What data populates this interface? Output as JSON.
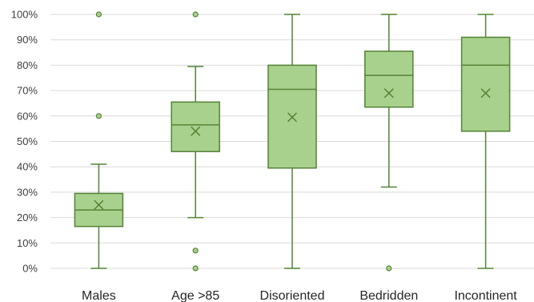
{
  "chart_data": {
    "type": "box",
    "title": "",
    "xlabel": "",
    "ylabel": "",
    "ylim": [
      0,
      100
    ],
    "y_ticks": [
      "0%",
      "10%",
      "20%",
      "30%",
      "40%",
      "50%",
      "60%",
      "70%",
      "80%",
      "90%",
      "100%"
    ],
    "grid": true,
    "legend": "none",
    "colors": {
      "box_fill": "#a9d18e",
      "stroke": "#548235",
      "grid": "#d9d9d9"
    },
    "series": [
      {
        "category": "Males",
        "min": 0,
        "q1": 16.5,
        "median": 23,
        "q3": 29.5,
        "max": 41,
        "mean": 25,
        "outliers": [
          60,
          100
        ]
      },
      {
        "category": "Age >85",
        "min": 20,
        "q1": 46,
        "median": 56.5,
        "q3": 65.5,
        "max": 79.5,
        "mean": 54,
        "outliers": [
          0,
          7,
          100
        ]
      },
      {
        "category": "Disoriented",
        "min": 0,
        "q1": 39.5,
        "median": 70.5,
        "q3": 80,
        "max": 100,
        "mean": 59.5,
        "outliers": []
      },
      {
        "category": "Bedridden",
        "min": 32,
        "q1": 63.5,
        "median": 76,
        "q3": 85.5,
        "max": 100,
        "mean": 69,
        "outliers": [
          0
        ]
      },
      {
        "category": "Incontinent",
        "min": 0,
        "q1": 54,
        "median": 80,
        "q3": 91,
        "max": 100,
        "mean": 69,
        "outliers": []
      }
    ]
  }
}
